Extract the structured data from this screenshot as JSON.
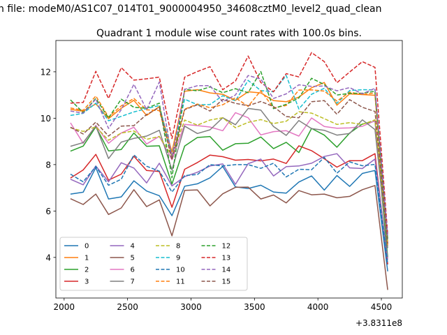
{
  "chart_data": {
    "type": "line",
    "suptitle": "n file: modeM0/AS1C07_014T01_9000004950_34608cztM0_level2_quad_clean",
    "title": "Quadrant 1 module wise count rates with 100.0s bins.",
    "xlabel": "",
    "ylabel": "",
    "x_offset_label": "+3.8311e8",
    "xlim": [
      1935,
      4665
    ],
    "ylim": [
      2.25,
      13.35
    ],
    "xticks": [
      2000,
      2500,
      3000,
      3500,
      4000,
      4500
    ],
    "yticks": [
      4,
      6,
      8,
      10,
      12
    ],
    "grid": false,
    "legend": {
      "placement": "lower-left",
      "ncol": 4
    },
    "x": [
      2050,
      2150,
      2250,
      2350,
      2450,
      2550,
      2650,
      2750,
      2850,
      2950,
      3050,
      3150,
      3250,
      3350,
      3450,
      3550,
      3650,
      3750,
      3850,
      3950,
      4050,
      4150,
      4250,
      4350,
      4450,
      4550
    ],
    "series": [
      {
        "name": "0",
        "color": "#1f77b4",
        "dash": "solid",
        "values": [
          6.73,
          6.81,
          7.87,
          6.52,
          6.61,
          7.3,
          6.86,
          6.66,
          5.8,
          7.07,
          7.17,
          7.43,
          7.92,
          7.04,
          6.97,
          7.11,
          6.82,
          6.77,
          7.25,
          7.51,
          6.9,
          7.53,
          7.06,
          7.62,
          7.75,
          3.4
        ]
      },
      {
        "name": "1",
        "color": "#ff7f0e",
        "dash": "solid",
        "values": [
          10.38,
          10.3,
          10.62,
          9.98,
          10.43,
          10.77,
          10.12,
          10.5,
          8.54,
          11.16,
          11.23,
          11.09,
          11.03,
          10.77,
          11.14,
          11.09,
          10.76,
          10.71,
          10.91,
          11.31,
          11.54,
          10.56,
          11.05,
          11.02,
          10.99,
          4.5
        ]
      },
      {
        "name": "2",
        "color": "#2ca02c",
        "dash": "solid",
        "values": [
          8.58,
          8.8,
          9.63,
          8.59,
          8.65,
          9.36,
          8.79,
          8.81,
          7.16,
          8.8,
          9.17,
          9.21,
          8.62,
          8.9,
          8.92,
          9.19,
          8.69,
          8.96,
          8.52,
          9.56,
          9.27,
          8.75,
          9.36,
          9.75,
          9.87,
          4.0
        ]
      },
      {
        "name": "3",
        "color": "#d62728",
        "dash": "solid",
        "values": [
          7.42,
          7.77,
          8.44,
          7.33,
          7.59,
          8.36,
          7.75,
          7.7,
          6.16,
          7.8,
          8.09,
          8.41,
          8.34,
          8.19,
          8.22,
          8.16,
          8.24,
          8.05,
          8.81,
          8.6,
          8.25,
          7.89,
          8.17,
          8.17,
          8.47,
          3.7
        ]
      },
      {
        "name": "4",
        "color": "#9467bd",
        "dash": "solid",
        "values": [
          7.37,
          7.13,
          7.94,
          7.26,
          8.08,
          7.85,
          7.21,
          8.06,
          7.08,
          7.48,
          7.67,
          7.94,
          8.03,
          7.15,
          8.04,
          8.24,
          7.51,
          7.91,
          7.94,
          8.06,
          8.35,
          8.47,
          7.86,
          7.83,
          8.24,
          3.9
        ]
      },
      {
        "name": "5",
        "color": "#8c564b",
        "dash": "solid",
        "values": [
          6.53,
          6.28,
          6.73,
          5.85,
          6.13,
          6.92,
          6.19,
          6.48,
          4.93,
          6.89,
          6.91,
          6.22,
          6.74,
          7.02,
          7.03,
          6.52,
          6.69,
          6.35,
          6.88,
          6.7,
          6.73,
          6.57,
          6.63,
          6.92,
          7.1,
          2.6
        ]
      },
      {
        "name": "6",
        "color": "#e377c2",
        "dash": "solid",
        "values": [
          9.8,
          8.92,
          9.69,
          8.92,
          9.36,
          9.61,
          8.89,
          9.22,
          8.21,
          9.73,
          9.68,
          9.62,
          9.46,
          10.24,
          10.02,
          9.28,
          9.42,
          9.46,
          9.23,
          10.01,
          9.64,
          9.57,
          9.58,
          9.65,
          9.89,
          4.6
        ]
      },
      {
        "name": "7",
        "color": "#7f7f7f",
        "dash": "solid",
        "values": [
          8.79,
          8.95,
          9.66,
          8.26,
          8.97,
          9.13,
          9.23,
          9.48,
          7.77,
          9.66,
          9.34,
          9.5,
          10.02,
          9.72,
          10.42,
          10.35,
          9.64,
          9.26,
          9.9,
          9.55,
          9.48,
          9.27,
          9.34,
          9.93,
          9.51,
          4.4
        ]
      },
      {
        "name": "8",
        "color": "#bcbd22",
        "dash": "dashed",
        "values": [
          9.59,
          9.43,
          9.63,
          9.05,
          9.36,
          9.45,
          9.09,
          9.21,
          8.38,
          9.92,
          9.7,
          9.92,
          10.02,
          9.59,
          9.82,
          9.94,
          9.77,
          9.87,
          10.28,
          10.22,
          9.98,
          9.73,
          9.81,
          9.73,
          9.93,
          4.7
        ]
      },
      {
        "name": "9",
        "color": "#17becf",
        "dash": "dashed",
        "values": [
          10.12,
          10.21,
          10.65,
          9.89,
          10.08,
          10.27,
          10.41,
          10.55,
          8.39,
          10.82,
          10.58,
          10.59,
          10.97,
          10.75,
          11.63,
          11.19,
          11.14,
          11.84,
          10.4,
          11.03,
          11.29,
          10.64,
          11.19,
          11.23,
          11.22,
          4.8
        ]
      },
      {
        "name": "10",
        "color": "#1f77b4",
        "dash": "dashed",
        "values": [
          7.59,
          7.26,
          7.92,
          7.11,
          7.37,
          8.42,
          7.93,
          7.72,
          6.82,
          7.53,
          7.57,
          8.0,
          7.94,
          8.0,
          8.0,
          7.84,
          8.06,
          7.47,
          7.8,
          7.78,
          8.31,
          7.63,
          8.12,
          7.95,
          8.01,
          3.7
        ]
      },
      {
        "name": "11",
        "color": "#ff7f0e",
        "dash": "dashed",
        "values": [
          10.44,
          10.34,
          10.96,
          10.05,
          10.53,
          10.85,
          10.36,
          10.33,
          8.35,
          10.39,
          10.61,
          10.45,
          10.58,
          10.88,
          10.51,
          11.19,
          10.44,
          10.55,
          11.21,
          11.22,
          11.17,
          10.74,
          11.12,
          11.02,
          11.09,
          4.5
        ]
      },
      {
        "name": "12",
        "color": "#2ca02c",
        "dash": "dashed",
        "values": [
          10.79,
          10.24,
          10.85,
          10.01,
          10.82,
          10.47,
          10.43,
          10.65,
          7.43,
          11.25,
          11.18,
          11.35,
          11.1,
          11.27,
          11.1,
          12.01,
          10.41,
          10.6,
          10.87,
          11.72,
          11.45,
          11.0,
          11.07,
          11.08,
          11.16,
          4.8
        ]
      },
      {
        "name": "13",
        "color": "#d62728",
        "dash": "dashed",
        "values": [
          10.65,
          10.68,
          12.02,
          10.85,
          12.18,
          11.64,
          11.7,
          11.77,
          9.12,
          11.77,
          12.01,
          12.22,
          11.23,
          11.6,
          12.68,
          11.54,
          11.14,
          11.92,
          11.78,
          12.83,
          12.44,
          11.53,
          11.99,
          12.44,
          12.19,
          5.0
        ]
      },
      {
        "name": "14",
        "color": "#9467bd",
        "dash": "dashed",
        "values": [
          10.31,
          10.22,
          10.82,
          9.56,
          10.37,
          11.46,
          10.37,
          11.56,
          8.26,
          11.24,
          11.4,
          11.4,
          10.71,
          11.0,
          11.84,
          11.69,
          10.85,
          11.05,
          11.44,
          11.37,
          11.39,
          11.18,
          11.32,
          11.05,
          11.29,
          4.9
        ]
      },
      {
        "name": "15",
        "color": "#8c564b",
        "dash": "dashed",
        "values": [
          9.61,
          9.32,
          9.83,
          9.23,
          9.66,
          9.68,
          10.16,
          10.46,
          8.2,
          10.37,
          10.58,
          10.31,
          10.81,
          10.64,
          10.54,
          10.72,
          10.5,
          10.07,
          10.02,
          10.71,
          10.76,
          10.17,
          10.8,
          10.47,
          10.29,
          4.6
        ]
      }
    ]
  }
}
